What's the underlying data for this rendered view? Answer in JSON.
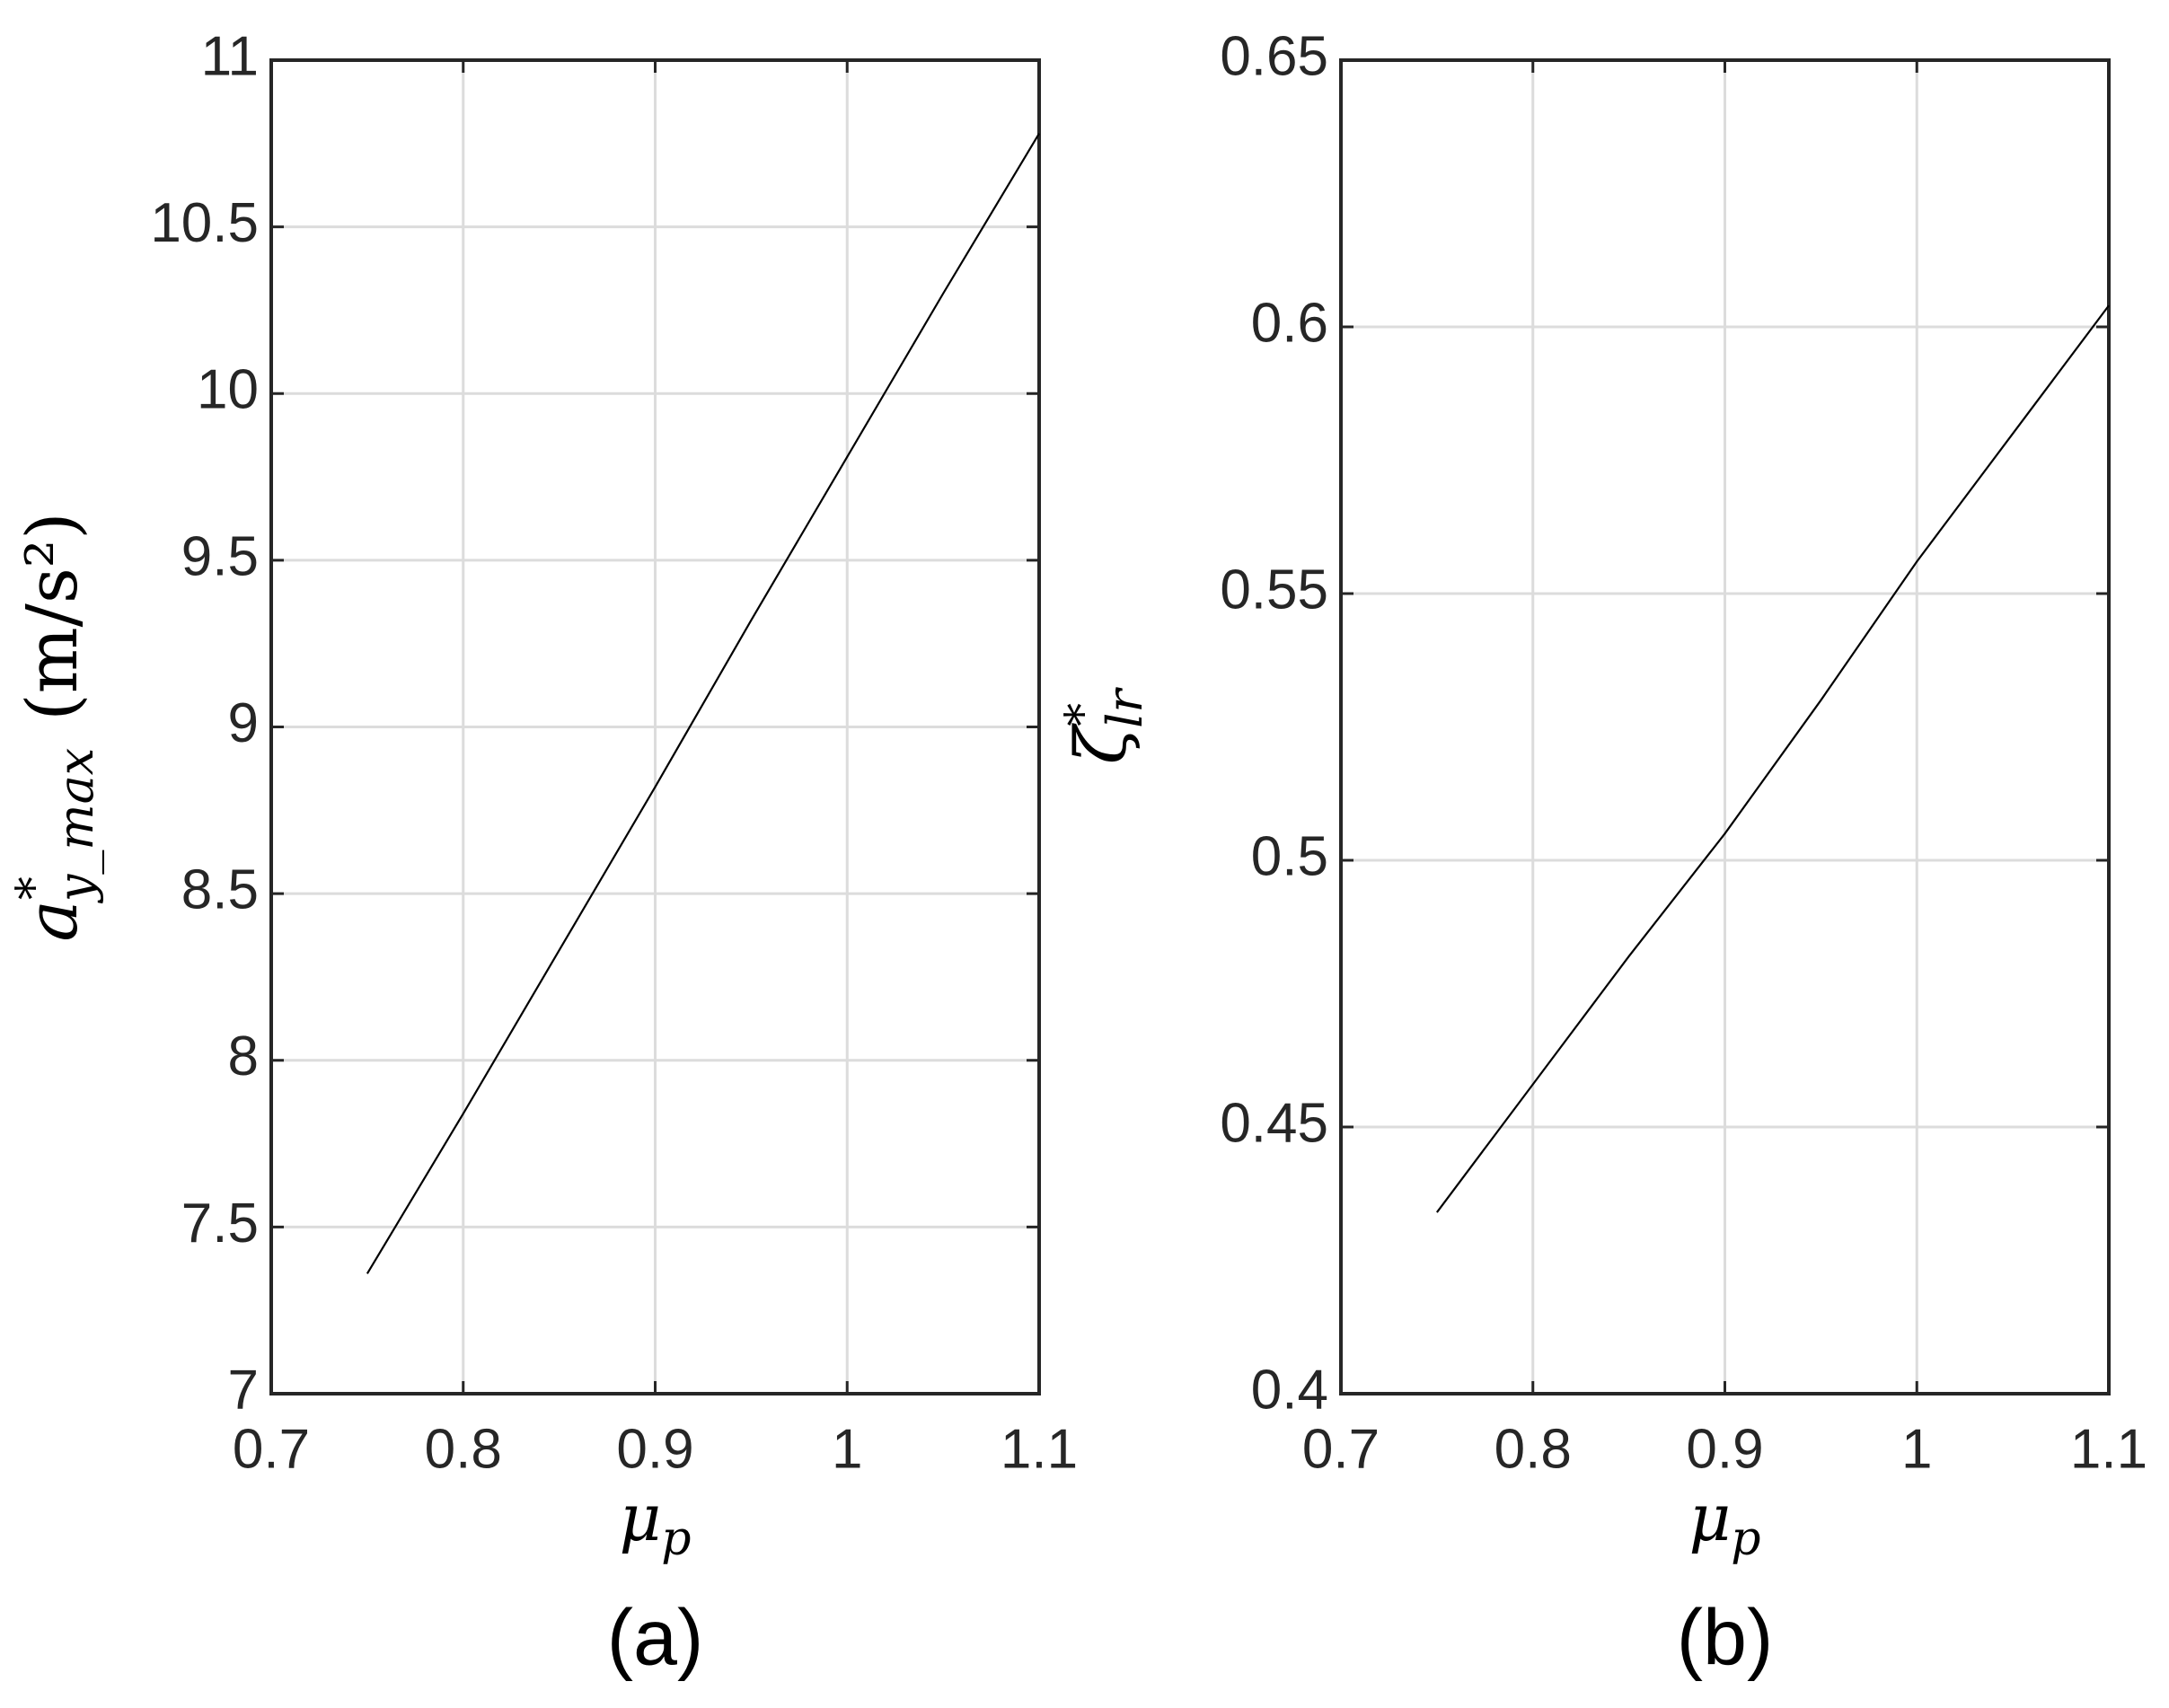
{
  "chart_data": [
    {
      "type": "line",
      "panel": "(a)",
      "xlabel": {
        "symbol": "μ",
        "sub": "p"
      },
      "ylabel": {
        "symbol": "a",
        "sup": "*",
        "sub": "y_max",
        "unit": "(m/s²)"
      },
      "x": [
        0.75,
        0.8,
        0.85,
        0.9,
        0.95,
        1.0,
        1.05,
        1.1
      ],
      "values": [
        7.36,
        7.84,
        8.33,
        8.82,
        9.32,
        9.81,
        10.3,
        10.78
      ],
      "color": "#000000",
      "xlim": [
        0.7,
        1.1
      ],
      "xticks": [
        0.7,
        0.8,
        0.9,
        1,
        1.1
      ],
      "ylim": [
        7,
        11
      ],
      "yticks": [
        7,
        7.5,
        8,
        8.5,
        9,
        9.5,
        10,
        10.5,
        11
      ],
      "grid": true
    },
    {
      "type": "line",
      "panel": "(b)",
      "xlabel": {
        "symbol": "μ",
        "sub": "p"
      },
      "ylabel": {
        "symbol": "ζ",
        "sup": "*",
        "sub": "lr"
      },
      "x": [
        0.75,
        0.8,
        0.85,
        0.9,
        0.95,
        1.0,
        1.05,
        1.1
      ],
      "values": [
        0.434,
        0.458,
        0.482,
        0.505,
        0.53,
        0.556,
        0.58,
        0.604
      ],
      "color": "#000000",
      "xlim": [
        0.7,
        1.1
      ],
      "xticks": [
        0.7,
        0.8,
        0.9,
        1,
        1.1
      ],
      "ylim": [
        0.4,
        0.65
      ],
      "yticks": [
        0.4,
        0.45,
        0.5,
        0.55,
        0.6,
        0.65
      ],
      "grid": true
    }
  ]
}
